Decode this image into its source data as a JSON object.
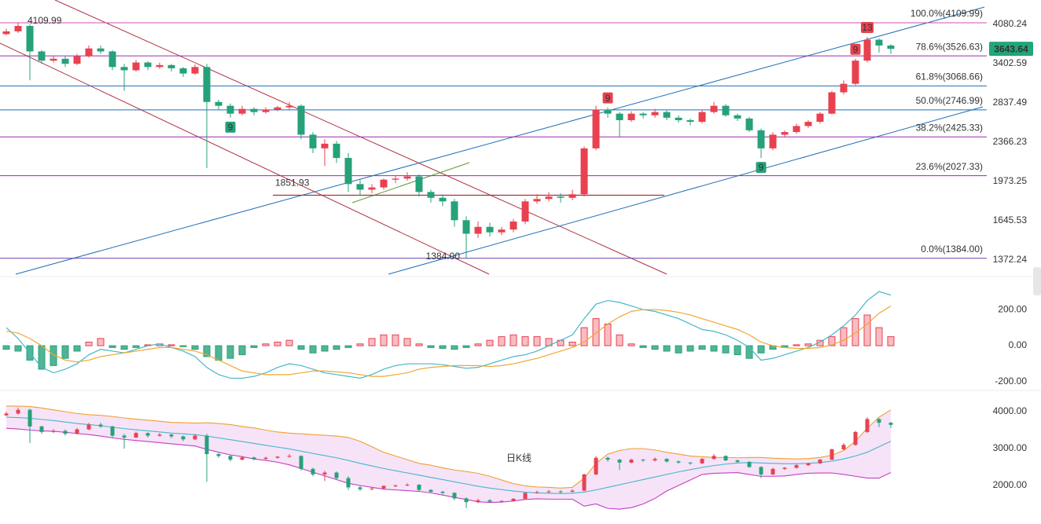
{
  "chart_data": [
    {
      "type": "candlestick",
      "log": true,
      "ylim": [
        1281,
        4566
      ],
      "yticks": [
        4080.24,
        3402.59,
        2837.49,
        2366.23,
        1973.25,
        1645.53,
        1372.24
      ],
      "up_color": "#e8414f",
      "down_color": "#26a17a",
      "open": [
        3900,
        3950,
        4050,
        3600,
        3450,
        3480,
        3400,
        3520,
        3650,
        3600,
        3350,
        3300,
        3420,
        3350,
        3380,
        3330,
        3250,
        3350,
        2850,
        2800,
        2700,
        2760,
        2720,
        2750,
        2780,
        2800,
        2450,
        2300,
        2350,
        2200,
        1950,
        1900,
        1920,
        1990,
        2000,
        2020,
        1880,
        1830,
        1800,
        1650,
        1550,
        1600,
        1560,
        1580,
        1640,
        1800,
        1820,
        1840,
        1830,
        1860,
        2300,
        2750,
        2700,
        2620,
        2700,
        2680,
        2720,
        2650,
        2620,
        2600,
        2720,
        2800,
        2680,
        2640,
        2500,
        2300,
        2450,
        2480,
        2550,
        2600,
        2700,
        2980,
        3100,
        3450,
        3800,
        3700
      ],
      "high": [
        4000,
        4109.99,
        4080,
        3620,
        3530,
        3520,
        3560,
        3700,
        3700,
        3620,
        3400,
        3460,
        3440,
        3420,
        3400,
        3350,
        3390,
        3400,
        2880,
        2830,
        2800,
        2780,
        2780,
        2800,
        2850,
        2820,
        2480,
        2400,
        2380,
        2250,
        1990,
        1950,
        2000,
        2030,
        2060,
        2040,
        1900,
        1860,
        1820,
        1680,
        1640,
        1630,
        1600,
        1660,
        1820,
        1860,
        1880,
        1870,
        1900,
        2320,
        2800,
        2780,
        2720,
        2730,
        2720,
        2760,
        2740,
        2680,
        2640,
        2750,
        2850,
        2820,
        2700,
        2660,
        2520,
        2480,
        2500,
        2580,
        2620,
        2720,
        3000,
        3150,
        3480,
        3850,
        3820,
        3720
      ],
      "low": [
        3880,
        3920,
        3150,
        3400,
        3420,
        3350,
        3380,
        3500,
        3560,
        3300,
        3000,
        3280,
        3300,
        3320,
        3280,
        3200,
        3230,
        2100,
        2750,
        2650,
        2680,
        2680,
        2700,
        2730,
        2750,
        2400,
        2250,
        2120,
        2150,
        1880,
        1850,
        1870,
        1900,
        1960,
        1980,
        1840,
        1790,
        1760,
        1600,
        1384,
        1520,
        1530,
        1540,
        1560,
        1620,
        1780,
        1800,
        1790,
        1810,
        1840,
        2280,
        2650,
        2420,
        2600,
        2640,
        2650,
        2620,
        2590,
        2560,
        2580,
        2700,
        2660,
        2610,
        2480,
        2200,
        2280,
        2420,
        2460,
        2530,
        2580,
        2690,
        2950,
        3080,
        3420,
        3580,
        3560
      ],
      "close": [
        3950,
        4050,
        3600,
        3450,
        3480,
        3400,
        3520,
        3650,
        3600,
        3350,
        3300,
        3420,
        3350,
        3380,
        3330,
        3250,
        3350,
        2850,
        2800,
        2700,
        2760,
        2720,
        2750,
        2780,
        2800,
        2450,
        2300,
        2350,
        2200,
        1950,
        1900,
        1920,
        1990,
        2000,
        2020,
        1880,
        1830,
        1800,
        1650,
        1550,
        1600,
        1560,
        1580,
        1640,
        1800,
        1820,
        1840,
        1830,
        1860,
        2300,
        2750,
        2700,
        2620,
        2700,
        2680,
        2720,
        2650,
        2620,
        2600,
        2720,
        2800,
        2680,
        2640,
        2500,
        2300,
        2450,
        2480,
        2550,
        2600,
        2700,
        2980,
        3100,
        3450,
        3800,
        3700,
        3643.64
      ],
      "fib_levels": [
        {
          "value": 4109.99,
          "label": "100.0%(4109.99)",
          "color": "#d04fb8"
        },
        {
          "value": 3526.63,
          "label": "78.6%(3526.63)",
          "color": "#9c27b0"
        },
        {
          "value": 3068.66,
          "label": "61.8%(3068.66)",
          "color": "#1e6fb8"
        },
        {
          "value": 2746.99,
          "label": "50.0%(2746.99)",
          "color": "#1e6fb8"
        },
        {
          "value": 2425.33,
          "label": "38.2%(2425.33)",
          "color": "#9c27b0"
        },
        {
          "value": 2027.33,
          "label": "23.6%(2027.33)",
          "color": "#9c27b0"
        },
        {
          "value": 1384,
          "label": "0.0%(1384.00)",
          "color": "#6a3cb0"
        }
      ],
      "support_level": {
        "value": 1851.93,
        "label": "1851.93",
        "color": "#a8323a"
      },
      "high_label": {
        "value": 4109.99,
        "label": "4109.99"
      },
      "low_label": {
        "value": 1384,
        "label": "1384.00"
      },
      "last_price": {
        "value": 3643.64,
        "label": "3643.64",
        "color": "#22a57a"
      },
      "markers": [
        {
          "label": "9",
          "color": "#26a17a"
        },
        {
          "label": "9",
          "color": "#e8414f"
        },
        {
          "label": "9",
          "color": "#26a17a"
        },
        {
          "label": "9",
          "color": "#e8414f"
        },
        {
          "label": "13",
          "color": "#e8414f"
        }
      ]
    },
    {
      "type": "macd",
      "ylim": [
        -239,
        370
      ],
      "yticks": [
        {
          "value": 200,
          "label": "200.00"
        },
        {
          "value": 0,
          "label": "0.00"
        },
        {
          "value": -200,
          "label": "-200.00"
        }
      ],
      "histogram": [
        -20,
        -30,
        -80,
        -130,
        -110,
        -70,
        -30,
        20,
        40,
        -10,
        -20,
        -10,
        5,
        10,
        5,
        -5,
        -20,
        -60,
        -80,
        -70,
        -50,
        -10,
        10,
        20,
        30,
        -20,
        -40,
        -30,
        -20,
        -10,
        10,
        40,
        60,
        60,
        40,
        10,
        -10,
        -15,
        -20,
        -10,
        10,
        30,
        50,
        60,
        50,
        50,
        40,
        30,
        20,
        100,
        150,
        120,
        60,
        10,
        -10,
        -20,
        -30,
        -40,
        -30,
        -20,
        -30,
        -40,
        -50,
        -70,
        -40,
        -20,
        -10,
        5,
        10,
        30,
        50,
        100,
        150,
        170,
        100,
        50
      ],
      "dif": [
        100,
        40,
        -40,
        -120,
        -150,
        -130,
        -100,
        -50,
        -20,
        -30,
        -40,
        -20,
        0,
        10,
        -10,
        -30,
        -60,
        -120,
        -160,
        -180,
        -180,
        -170,
        -150,
        -120,
        -100,
        -110,
        -130,
        -150,
        -160,
        -170,
        -180,
        -160,
        -130,
        -110,
        -100,
        -100,
        -100,
        -105,
        -115,
        -125,
        -120,
        -100,
        -80,
        -60,
        -50,
        -30,
        0,
        30,
        60,
        150,
        230,
        250,
        240,
        220,
        200,
        190,
        170,
        150,
        120,
        90,
        80,
        60,
        30,
        -10,
        -80,
        -70,
        -50,
        -30,
        -10,
        20,
        60,
        110,
        170,
        250,
        300,
        280
      ],
      "dea": [
        80,
        70,
        40,
        0,
        -50,
        -80,
        -90,
        -80,
        -60,
        -50,
        -40,
        -30,
        -20,
        -10,
        -10,
        -20,
        -30,
        -50,
        -80,
        -110,
        -140,
        -150,
        -160,
        -160,
        -160,
        -150,
        -140,
        -140,
        -145,
        -150,
        -160,
        -170,
        -170,
        -160,
        -150,
        -130,
        -120,
        -115,
        -110,
        -110,
        -110,
        -115,
        -110,
        -100,
        -85,
        -70,
        -50,
        -30,
        -10,
        20,
        70,
        120,
        160,
        190,
        200,
        200,
        195,
        185,
        170,
        150,
        130,
        110,
        90,
        60,
        20,
        0,
        -10,
        -15,
        -15,
        -10,
        5,
        30,
        70,
        120,
        180,
        220
      ],
      "dif_color": "#45b7c9",
      "dea_color": "#f0a830",
      "up_color": "#e8414f",
      "down_color": "#26a17a"
    },
    {
      "type": "bollinger",
      "ylim": [
        1106,
        4511
      ],
      "yticks": [
        {
          "value": 4000,
          "label": "4000.00"
        },
        {
          "value": 3000,
          "label": "3000.00"
        },
        {
          "value": 2000,
          "label": "2000.00"
        }
      ],
      "upper": [
        4150,
        4150,
        4140,
        4100,
        4050,
        4000,
        3950,
        3920,
        3900,
        3870,
        3830,
        3800,
        3770,
        3740,
        3710,
        3700,
        3690,
        3700,
        3680,
        3650,
        3600,
        3560,
        3500,
        3450,
        3420,
        3400,
        3380,
        3360,
        3340,
        3300,
        3200,
        3050,
        2900,
        2800,
        2700,
        2600,
        2550,
        2480,
        2420,
        2380,
        2330,
        2250,
        2150,
        2050,
        1990,
        1960,
        1950,
        1930,
        1950,
        2200,
        2600,
        2850,
        2950,
        3000,
        3000,
        2960,
        2900,
        2850,
        2800,
        2780,
        2760,
        2760,
        2750,
        2760,
        2760,
        2740,
        2730,
        2720,
        2730,
        2760,
        2820,
        2950,
        3200,
        3550,
        3850,
        4050
      ],
      "mid": [
        3850,
        3840,
        3820,
        3790,
        3760,
        3720,
        3680,
        3650,
        3620,
        3580,
        3540,
        3510,
        3480,
        3450,
        3420,
        3400,
        3380,
        3340,
        3290,
        3240,
        3190,
        3140,
        3090,
        3040,
        2990,
        2930,
        2870,
        2810,
        2750,
        2680,
        2600,
        2530,
        2460,
        2400,
        2340,
        2280,
        2220,
        2160,
        2100,
        2040,
        1980,
        1930,
        1890,
        1850,
        1820,
        1800,
        1790,
        1780,
        1790,
        1820,
        1880,
        1950,
        2020,
        2090,
        2160,
        2230,
        2300,
        2370,
        2430,
        2490,
        2540,
        2580,
        2610,
        2620,
        2610,
        2600,
        2590,
        2590,
        2600,
        2620,
        2660,
        2720,
        2800,
        2900,
        3050,
        3200
      ],
      "lower": [
        3550,
        3530,
        3500,
        3480,
        3470,
        3440,
        3410,
        3380,
        3340,
        3290,
        3250,
        3220,
        3190,
        3160,
        3130,
        3100,
        3070,
        2980,
        2900,
        2830,
        2780,
        2720,
        2680,
        2630,
        2560,
        2460,
        2360,
        2260,
        2160,
        2060,
        2000,
        1950,
        1900,
        1880,
        1860,
        1840,
        1800,
        1740,
        1680,
        1620,
        1560,
        1540,
        1550,
        1580,
        1620,
        1640,
        1630,
        1630,
        1630,
        1440,
        1500,
        1380,
        1360,
        1400,
        1500,
        1650,
        1850,
        2000,
        2150,
        2300,
        2330,
        2340,
        2350,
        2300,
        2250,
        2250,
        2260,
        2300,
        2330,
        2340,
        2340,
        2300,
        2250,
        2200,
        2200,
        2350
      ],
      "upper_color": "#f0a030",
      "mid_color": "#45b7c9",
      "lower_color": "#c040c0",
      "band_fill": "#f6e3f8",
      "watermark": "日K线",
      "watermark_color": "#e53935"
    }
  ]
}
